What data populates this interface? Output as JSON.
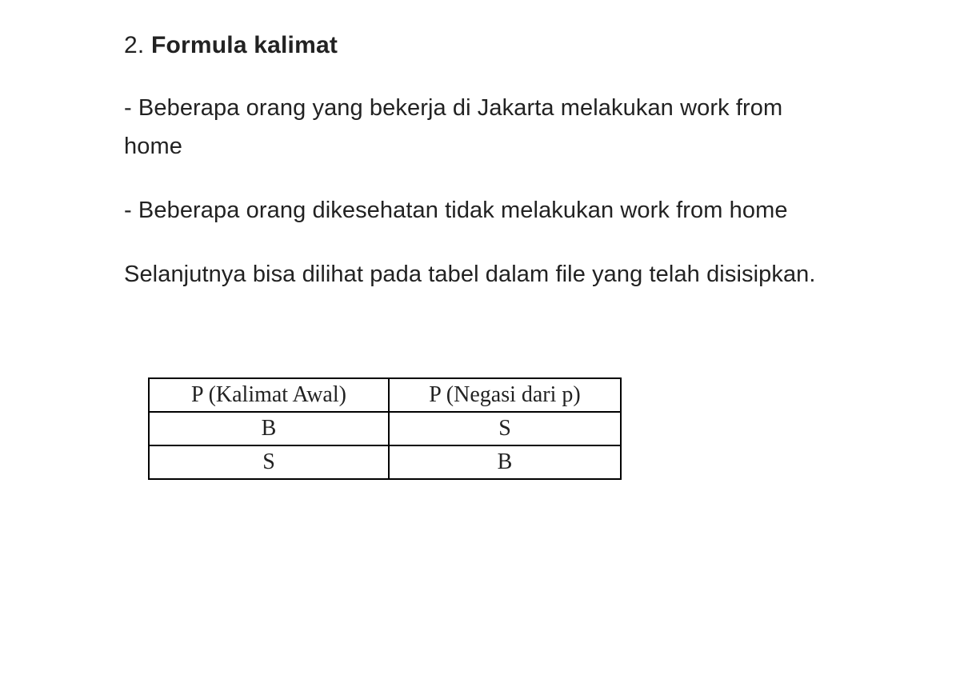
{
  "heading": {
    "number": "2.",
    "title": "Formula kalimat"
  },
  "paragraphs": {
    "p1": "- Beberapa orang yang bekerja di Jakarta melakukan work from home",
    "p2": "- Beberapa orang dikesehatan tidak melakukan work from home",
    "p3": "Selanjutnya bisa dilihat pada tabel dalam file yang telah disisipkan."
  },
  "table": {
    "columns": [
      "P (Kalimat Awal)",
      "P (Negasi dari p)"
    ],
    "rows": [
      [
        "B",
        "S"
      ],
      [
        "S",
        "B"
      ]
    ],
    "border_color": "#000000",
    "font_family": "Times New Roman",
    "cell_fontsize": 28
  },
  "colors": {
    "background": "#ffffff",
    "text": "#222222"
  }
}
